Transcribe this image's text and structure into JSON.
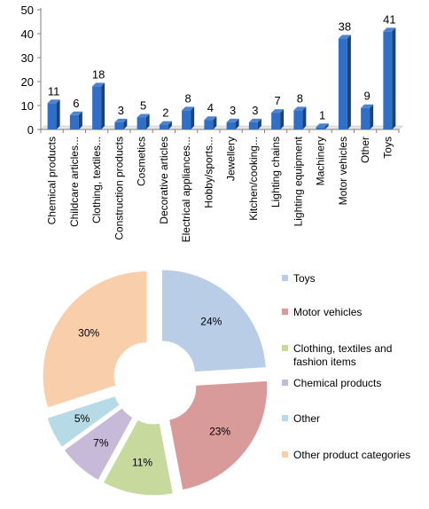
{
  "chart_data": [
    {
      "type": "bar",
      "categories": [
        "Chemical products",
        "Childcare articles...",
        "Clothing, textiles...",
        "Construction products",
        "Cosmetics",
        "Decorative articles",
        "Electrical appliances...",
        "Hobby/sports...",
        "Jewellery",
        "Kitchen/cooking...",
        "Lighting chains",
        "Lighting equipment",
        "Machinery",
        "Motor vehicles",
        "Other",
        "Toys"
      ],
      "values": [
        11,
        6,
        18,
        3,
        5,
        2,
        8,
        4,
        3,
        3,
        7,
        8,
        1,
        38,
        9,
        41
      ],
      "ylim": [
        0,
        50
      ],
      "yticks": [
        0,
        10,
        20,
        30,
        40,
        50
      ],
      "grid": false,
      "bar_color": "#2f6fc7",
      "title": "",
      "xlabel": "",
      "ylabel": ""
    },
    {
      "type": "pie",
      "style": "exploded-donut",
      "labels": [
        "Toys",
        "Motor vehicles",
        "Clothing, textiles and fashion items",
        "Chemical products",
        "Other",
        "Other product categories"
      ],
      "legend_lines": [
        [
          "Toys"
        ],
        [
          "Motor vehicles"
        ],
        [
          "Clothing, textiles and",
          "fashion items"
        ],
        [
          "Chemical products"
        ],
        [
          "Other"
        ],
        [
          "Other product categories"
        ]
      ],
      "values": [
        24,
        23,
        11,
        7,
        5,
        30
      ],
      "value_labels": [
        "24%",
        "23%",
        "11%",
        "7%",
        "5%",
        "30%"
      ],
      "colors": [
        "#b9cde6",
        "#d99a9a",
        "#c8d99e",
        "#c7bad9",
        "#b7dbe6",
        "#f9ceaa"
      ],
      "legend_position": "right"
    }
  ]
}
